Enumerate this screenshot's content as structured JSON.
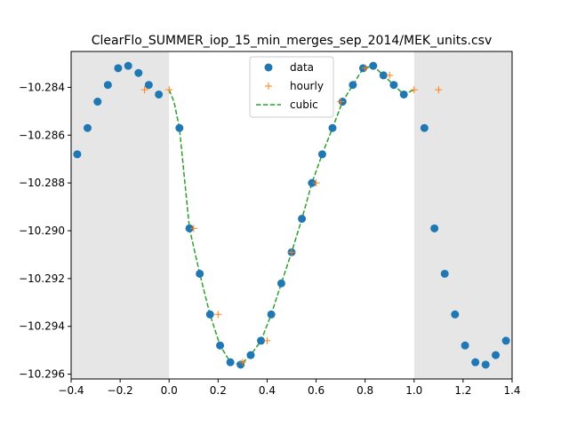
{
  "chart_data": {
    "type": "scatter",
    "title": "ClearFlo_SUMMER_iop_15_min_merges_sep_2014/MEK_units.csv",
    "xlabel": "",
    "ylabel": "",
    "xlim": [
      -0.4,
      1.4
    ],
    "ylim": [
      -10.2962,
      -10.2825
    ],
    "xticks": [
      -0.4,
      -0.2,
      0.0,
      0.2,
      0.4,
      0.6,
      0.8,
      1.0,
      1.2,
      1.4
    ],
    "xtick_labels": [
      "−0.4",
      "−0.2",
      "0.0",
      "0.2",
      "0.4",
      "0.6",
      "0.8",
      "1.0",
      "1.2",
      "1.4"
    ],
    "yticks": [
      -10.296,
      -10.294,
      -10.292,
      -10.29,
      -10.288,
      -10.286,
      -10.284
    ],
    "ytick_labels": [
      "−10.296",
      "−10.294",
      "−10.292",
      "−10.290",
      "−10.288",
      "−10.286",
      "−10.284"
    ],
    "shaded_regions": [
      [
        -0.4,
        0.0
      ],
      [
        1.0,
        1.4
      ]
    ],
    "grid": false,
    "legend": "top-center",
    "series": [
      {
        "name": "data",
        "style": "marker-circle",
        "color": "#1f77b4",
        "x": [
          -0.375,
          -0.333,
          -0.292,
          -0.25,
          -0.208,
          -0.167,
          -0.125,
          -0.083,
          -0.042,
          0.042,
          0.083,
          0.125,
          0.167,
          0.208,
          0.25,
          0.292,
          0.333,
          0.375,
          0.417,
          0.458,
          0.5,
          0.542,
          0.583,
          0.625,
          0.667,
          0.708,
          0.75,
          0.792,
          0.833,
          0.875,
          0.917,
          0.958,
          1.042,
          1.083,
          1.125,
          1.167,
          1.208,
          1.25,
          1.292,
          1.333,
          1.375
        ],
        "y": [
          -10.2868,
          -10.2857,
          -10.2846,
          -10.2839,
          -10.2832,
          -10.2831,
          -10.2834,
          -10.2839,
          -10.2843,
          -10.2857,
          -10.2899,
          -10.2918,
          -10.2935,
          -10.2948,
          -10.2955,
          -10.2956,
          -10.2952,
          -10.2946,
          -10.2935,
          -10.2922,
          -10.2909,
          -10.2895,
          -10.288,
          -10.2868,
          -10.2857,
          -10.2846,
          -10.2839,
          -10.2832,
          -10.2831,
          -10.2835,
          -10.2839,
          -10.2843,
          -10.2857,
          -10.2899,
          -10.2918,
          -10.2935,
          -10.2948,
          -10.2955,
          -10.2956,
          -10.2952,
          -10.2946
        ]
      },
      {
        "name": "hourly",
        "style": "marker-plus",
        "color": "#ff7f0e",
        "x": [
          -0.1,
          0.0,
          0.1,
          0.2,
          0.3,
          0.4,
          0.5,
          0.6,
          0.7,
          0.8,
          0.9,
          1.0,
          1.1
        ],
        "y": [
          -10.2841,
          -10.2841,
          -10.2899,
          -10.2935,
          -10.2955,
          -10.2946,
          -10.2909,
          -10.288,
          -10.2846,
          -10.2832,
          -10.2835,
          -10.2841,
          -10.2841
        ]
      },
      {
        "name": "cubic",
        "style": "dashed-line",
        "color": "#2ca02c",
        "x": [
          0.0,
          0.02,
          0.042,
          0.083,
          0.125,
          0.167,
          0.208,
          0.25,
          0.292,
          0.333,
          0.375,
          0.417,
          0.458,
          0.5,
          0.542,
          0.583,
          0.625,
          0.667,
          0.708,
          0.75,
          0.792,
          0.833,
          0.875,
          0.917,
          0.958,
          1.0
        ],
        "y": [
          -10.2841,
          -10.2846,
          -10.2857,
          -10.2899,
          -10.2918,
          -10.2935,
          -10.2948,
          -10.2955,
          -10.2956,
          -10.2952,
          -10.2946,
          -10.2935,
          -10.2922,
          -10.2909,
          -10.2895,
          -10.288,
          -10.2868,
          -10.2857,
          -10.2846,
          -10.2839,
          -10.2832,
          -10.2831,
          -10.2835,
          -10.2839,
          -10.2843,
          -10.2841
        ]
      }
    ]
  }
}
